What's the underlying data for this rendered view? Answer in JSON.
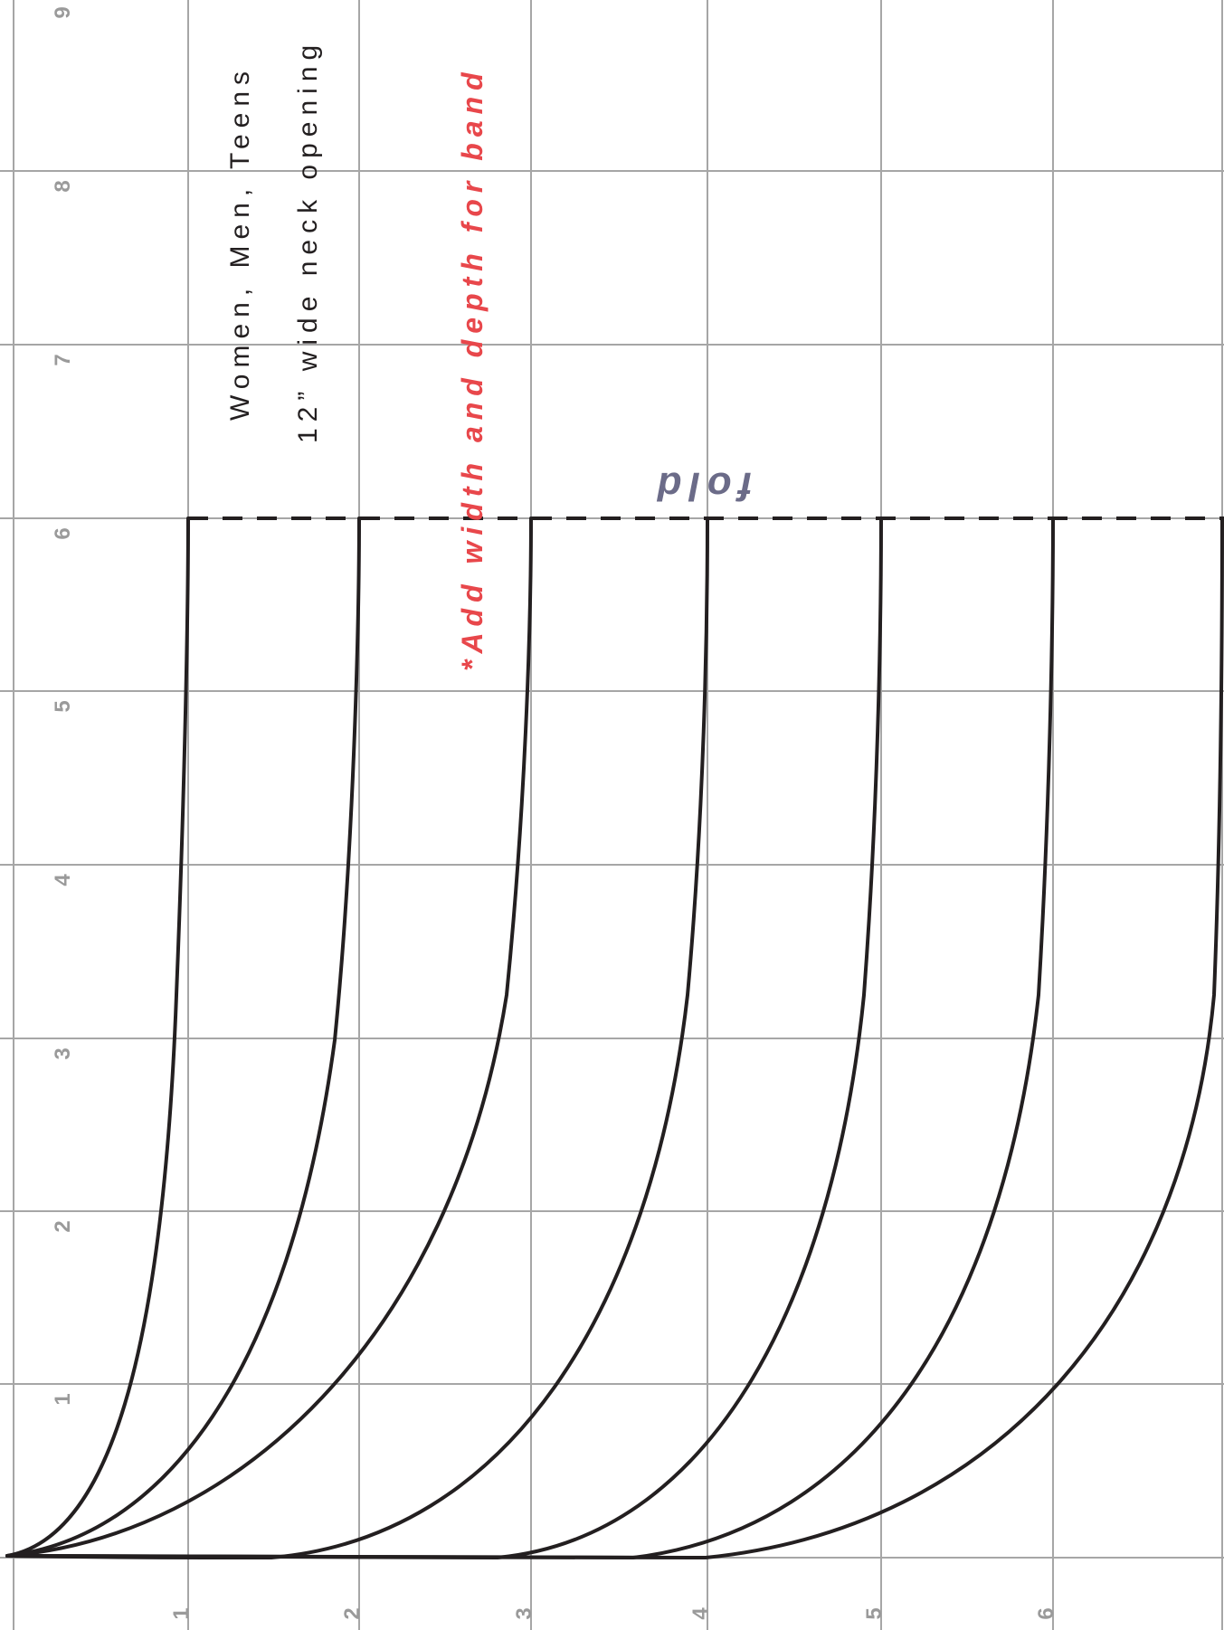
{
  "grid": {
    "color": "#a6a6a6",
    "column_labels": [
      "1",
      "2",
      "3",
      "4",
      "5",
      "6"
    ],
    "row_labels": [
      "1",
      "2",
      "3",
      "4",
      "5",
      "6",
      "7",
      "8",
      "9"
    ]
  },
  "labels": {
    "audience": "Women, Men, Teens",
    "neck_opening": "12” wide neck opening",
    "band_note": "*Add width and depth for band",
    "fold": "fold"
  },
  "colors": {
    "curve": "#231f20",
    "note": "#e8474b",
    "fold": "#6b6b88"
  },
  "curves": {
    "count": 7,
    "fold_line": "dashed"
  }
}
